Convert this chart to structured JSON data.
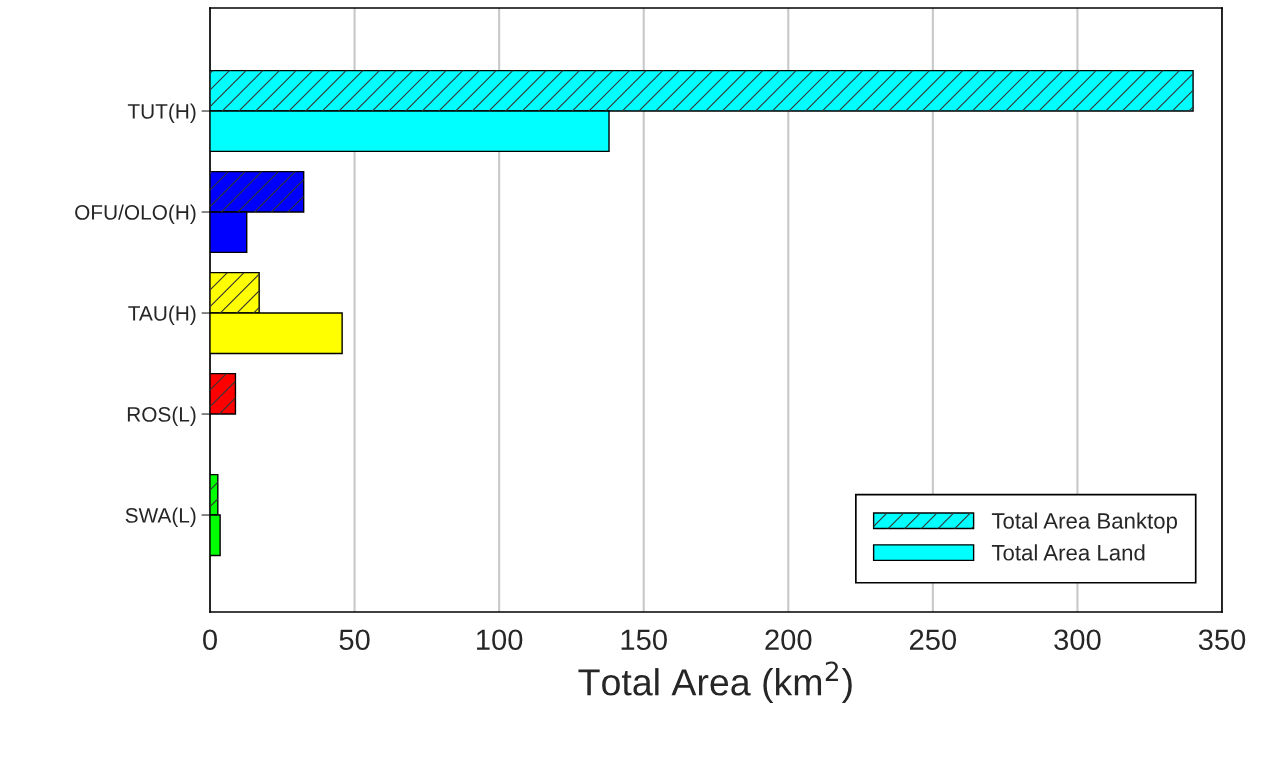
{
  "chart_data": {
    "type": "bar",
    "orientation": "horizontal",
    "xlabel": "Total Area (km$^{2}$)",
    "categories": [
      "TUT(H)",
      "OFU/OLO(H)",
      "TAU(H)",
      "ROS(L)",
      "SWA(L)"
    ],
    "series": [
      {
        "name": "Total Area Banktop",
        "colors": [
          "#00ffff",
          "#0000ff",
          "#ffff00",
          "#ff0000",
          "#00ff00"
        ],
        "values": [
          340,
          32.4,
          17,
          8.8,
          2.7
        ]
      },
      {
        "name": "Total Area Land",
        "colors": [
          "#00ffff",
          "#0000ff",
          "#ffff00",
          "#ff0000",
          "#00ff00"
        ],
        "values": [
          138,
          12.7,
          45.7,
          null,
          3.5
        ]
      }
    ],
    "xlim": [
      0,
      350
    ],
    "xticks": [
      0,
      50,
      100,
      150,
      200,
      250,
      300,
      350
    ],
    "grid": "x",
    "legend": "bottom right"
  }
}
